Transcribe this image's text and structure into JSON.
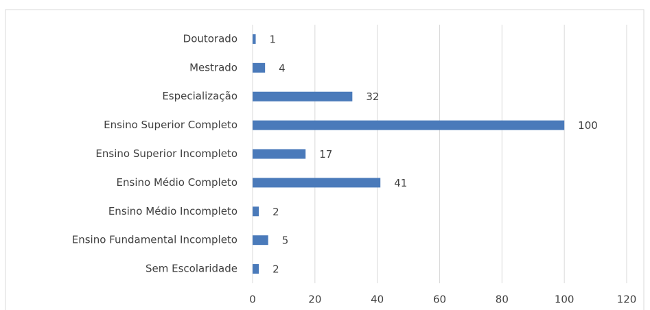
{
  "chart_data": {
    "type": "bar",
    "orientation": "horizontal",
    "categories": [
      "Doutorado",
      "Mestrado",
      "Especialização",
      "Ensino Superior Completo",
      "Ensino Superior Incompleto",
      "Ensino Médio Completo",
      "Ensino Médio Incompleto",
      "Ensino Fundamental Incompleto",
      "Sem Escolaridade"
    ],
    "values": [
      1,
      4,
      32,
      100,
      17,
      41,
      2,
      5,
      2
    ],
    "color": "#4a7aba",
    "xlim": [
      0,
      120
    ],
    "xticks": [
      0,
      20,
      40,
      60,
      80,
      100,
      120
    ],
    "grid": true
  }
}
